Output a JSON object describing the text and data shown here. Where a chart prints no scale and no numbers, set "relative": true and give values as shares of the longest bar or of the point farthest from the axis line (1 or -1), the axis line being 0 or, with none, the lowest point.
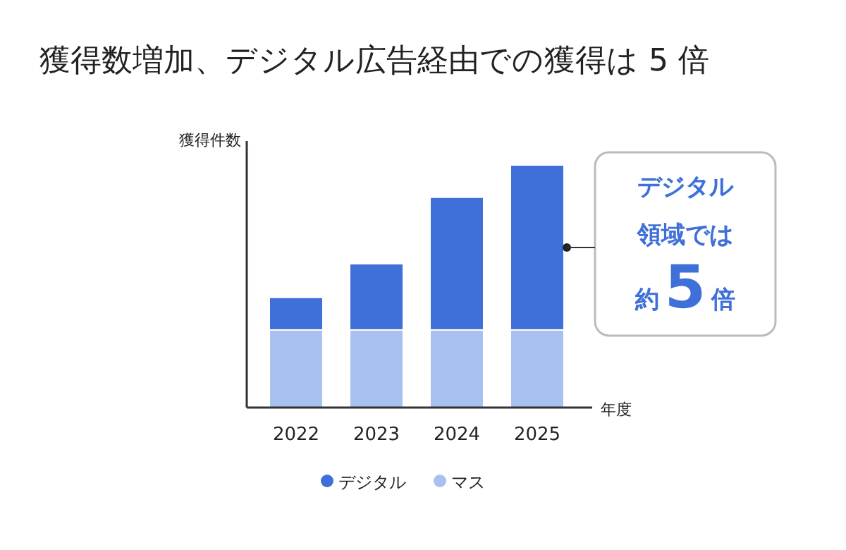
{
  "chart_data": {
    "type": "bar",
    "title": "獲得数増加、デジタル広告経由での獲得は 5 倍",
    "ylabel": "獲得件数",
    "xlabel": "年度",
    "categories": [
      "2022",
      "2023",
      "2024",
      "2025"
    ],
    "relative": true,
    "stacked": true,
    "series": [
      {
        "name": "マス",
        "color": "#a9c1ef",
        "values": [
          0.32,
          0.32,
          0.32,
          0.32
        ]
      },
      {
        "name": "デジタル",
        "color": "#3f6fd8",
        "values": [
          0.134,
          0.273,
          0.547,
          0.68
        ]
      }
    ],
    "annotations": [
      "デジタル",
      "領域では",
      "約5倍"
    ],
    "legend": "bottom"
  }
}
